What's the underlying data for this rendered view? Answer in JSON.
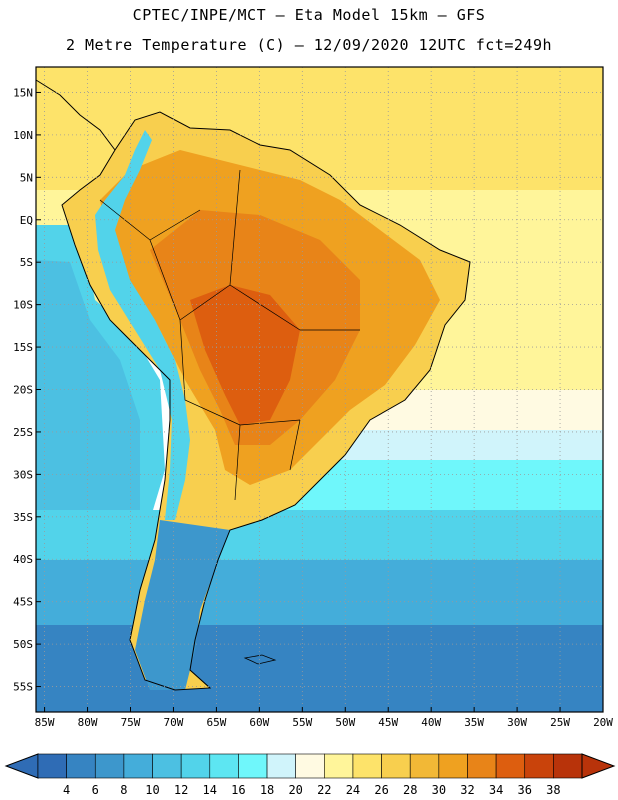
{
  "header": {
    "line1": "CPTEC/INPE/MCT –  Eta Model 15km – GFS",
    "line2": "2 Metre Temperature (C) – 12/09/2020 12UTC fct=249h"
  },
  "map": {
    "lat_labels": [
      "15N",
      "10N",
      "5N",
      "EQ",
      "5S",
      "10S",
      "15S",
      "20S",
      "25S",
      "30S",
      "35S",
      "40S",
      "45S",
      "50S",
      "55S"
    ],
    "lat_values": [
      15,
      10,
      5,
      0,
      -5,
      -10,
      -15,
      -20,
      -25,
      -30,
      -35,
      -40,
      -45,
      -50,
      -55
    ],
    "lon_labels": [
      "85W",
      "80W",
      "75W",
      "70W",
      "65W",
      "60W",
      "55W",
      "50W",
      "45W",
      "40W",
      "35W",
      "30W",
      "25W",
      "20W"
    ],
    "lon_values": [
      -85,
      -80,
      -75,
      -70,
      -65,
      -60,
      -55,
      -50,
      -45,
      -40,
      -35,
      -30,
      -25,
      -20
    ],
    "lat_range": [
      -58,
      18
    ],
    "lon_range": [
      -86,
      -20
    ],
    "gridlines": true
  },
  "colorbar": {
    "ticks": [
      "4",
      "6",
      "8",
      "10",
      "12",
      "14",
      "16",
      "18",
      "20",
      "22",
      "24",
      "26",
      "28",
      "30",
      "32",
      "34",
      "36",
      "38"
    ],
    "colors": [
      "#2f6cb5",
      "#3684c2",
      "#3d97cc",
      "#44adda",
      "#4cc0e2",
      "#52d3ea",
      "#5de6f2",
      "#6ff7fb",
      "#d0f4fb",
      "#fffae2",
      "#fff59a",
      "#fde36a",
      "#f8cf4e",
      "#f2b836",
      "#efa120",
      "#e88418",
      "#dd5e0f",
      "#c9430b",
      "#b8330a"
    ]
  }
}
